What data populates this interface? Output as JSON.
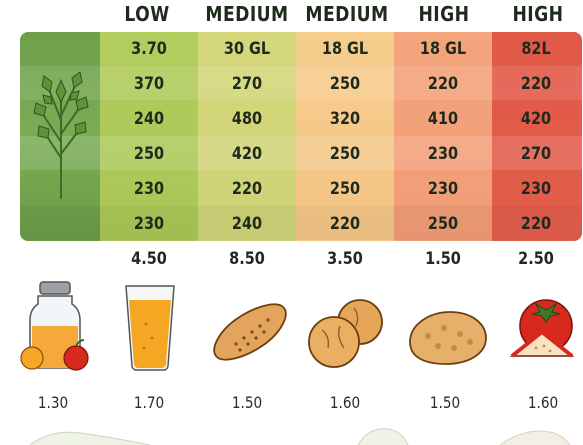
{
  "header_labels": [
    "LOW",
    "MEDIUM",
    "MEDIUM",
    "HIGH",
    "HIGH"
  ],
  "table_rows": [
    [
      "3.70",
      "30 GL",
      "18 GL",
      "18 GL",
      "82L"
    ],
    [
      "370",
      "270",
      "250",
      "220",
      "220"
    ],
    [
      "240",
      "480",
      "320",
      "410",
      "420"
    ],
    [
      "250",
      "420",
      "250",
      "230",
      "270"
    ],
    [
      "230",
      "220",
      "250",
      "230",
      "230"
    ],
    [
      "230",
      "240",
      "220",
      "250",
      "220"
    ]
  ],
  "footer_values": [
    "4.50",
    "8.50",
    "3.50",
    "1.50",
    "2.50"
  ],
  "bottom_values": [
    "1.30",
    "1.70",
    "1.50",
    "1.60",
    "1.50",
    "1.60"
  ],
  "icons": {
    "herb": "parsley-sprig-icon",
    "foods": [
      "juice-jar-with-fruit-icon",
      "orange-juice-glass-icon",
      "bread-loaf-icon",
      "round-bread-rolls-icon",
      "fried-patty-icon",
      "tomato-and-slice-icon"
    ]
  },
  "colors": {
    "herb_column": "#6fa04a",
    "low": "#b5cc5c",
    "medium_1": "#d6d77a",
    "medium_2": "#f5c98a",
    "high_1": "#f2a47c",
    "high_2": "#e4614e"
  }
}
